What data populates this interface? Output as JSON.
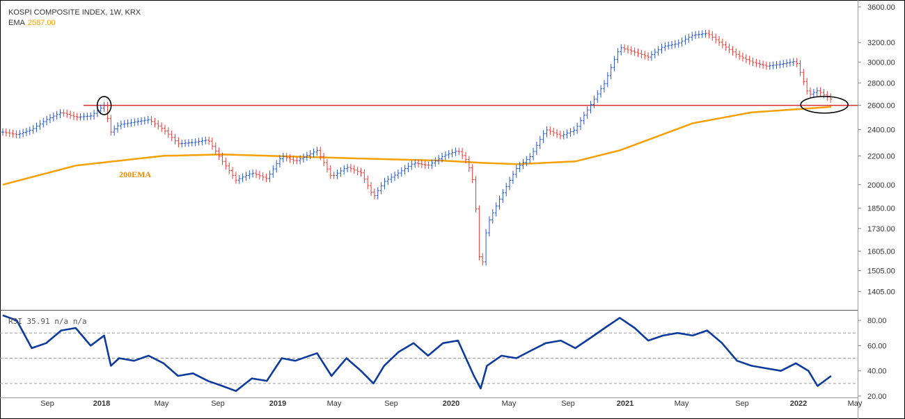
{
  "header": {
    "title": "KOSPI COMPOSITE INDEX, 1W, KRX",
    "ema_label": "EMA",
    "ema_value": "2587.00"
  },
  "colors": {
    "up": "#2557c7",
    "down": "#e23b36",
    "ema": "#f5a000",
    "support_line": "#d62d2d",
    "rsi_line": "#0d3a9b",
    "annotation": "#000000"
  },
  "chart_data": [
    {
      "type": "line",
      "title": "KOSPI COMPOSITE INDEX, 1W, KRX",
      "y_scale": "log",
      "ylim": [
        1340,
        3650
      ],
      "y_ticks": [
        "3600.00",
        "3200.00",
        "3000.00",
        "2800.00",
        "2600.00",
        "2400.00",
        "2200.00",
        "2000.00",
        "1850.00",
        "1730.00",
        "1605.00",
        "1505.00",
        "1405.00"
      ],
      "x_ticks": [
        "Sep",
        "2018",
        "May",
        "Sep",
        "2019",
        "May",
        "Sep",
        "2020",
        "May",
        "Sep",
        "2021",
        "May",
        "Sep",
        "2022",
        "May"
      ],
      "x_range": [
        "2017-07-03",
        "2022-05-09"
      ],
      "support_level": 2600,
      "annotations": [
        {
          "text": "200EMA",
          "date": "2018-03-01",
          "value": 2050
        }
      ],
      "circled_points": [
        {
          "date": "2018-01-29",
          "value": 2598
        },
        {
          "date": "2022-03-01",
          "value": 2605
        }
      ],
      "series": [
        {
          "name": "KOSPI",
          "dates": [
            "2017-07-03",
            "2017-08-01",
            "2017-09-01",
            "2017-10-01",
            "2017-11-01",
            "2017-12-01",
            "2018-01-01",
            "2018-01-29",
            "2018-02-12",
            "2018-03-01",
            "2018-04-01",
            "2018-05-01",
            "2018-06-01",
            "2018-07-01",
            "2018-08-01",
            "2018-09-01",
            "2018-10-01",
            "2018-10-29",
            "2018-12-01",
            "2019-01-01",
            "2019-02-01",
            "2019-03-01",
            "2019-04-15",
            "2019-05-15",
            "2019-06-15",
            "2019-07-15",
            "2019-08-10",
            "2019-09-01",
            "2019-10-01",
            "2019-11-01",
            "2019-12-01",
            "2020-01-01",
            "2020-02-01",
            "2020-02-20",
            "2020-03-05",
            "2020-03-19",
            "2020-04-01",
            "2020-05-01",
            "2020-06-01",
            "2020-07-01",
            "2020-08-01",
            "2020-09-01",
            "2020-10-01",
            "2020-11-01",
            "2020-12-01",
            "2021-01-01",
            "2021-02-01",
            "2021-03-01",
            "2021-04-01",
            "2021-05-01",
            "2021-06-01",
            "2021-07-01",
            "2021-08-01",
            "2021-09-01",
            "2021-10-01",
            "2021-11-01",
            "2021-12-01",
            "2022-01-01",
            "2022-01-27",
            "2022-02-15",
            "2022-03-15"
          ],
          "values": [
            2380,
            2360,
            2400,
            2480,
            2540,
            2500,
            2510,
            2598,
            2380,
            2440,
            2460,
            2480,
            2400,
            2290,
            2300,
            2320,
            2160,
            2030,
            2080,
            2040,
            2200,
            2160,
            2240,
            2050,
            2120,
            2080,
            1920,
            2020,
            2080,
            2150,
            2130,
            2200,
            2240,
            2160,
            2000,
            1460,
            1750,
            1930,
            2110,
            2200,
            2400,
            2350,
            2400,
            2600,
            2800,
            3150,
            3100,
            3050,
            3160,
            3190,
            3280,
            3300,
            3180,
            3070,
            3000,
            2960,
            2980,
            3010,
            2690,
            2730,
            2650
          ]
        },
        {
          "name": "200EMA",
          "dates": [
            "2017-07-03",
            "2017-12-01",
            "2018-06-01",
            "2018-10-01",
            "2019-06-01",
            "2020-01-01",
            "2020-03-19",
            "2020-06-01",
            "2020-10-01",
            "2021-01-01",
            "2021-06-01",
            "2021-10-01",
            "2022-03-15"
          ],
          "values": [
            2000,
            2130,
            2200,
            2210,
            2185,
            2165,
            2150,
            2140,
            2160,
            2240,
            2450,
            2540,
            2587
          ]
        }
      ]
    },
    {
      "type": "line",
      "title": "RSI 35.91 n/a n/a",
      "ylim": [
        20,
        85
      ],
      "y_ticks": [
        "80.00",
        "60.00",
        "40.00",
        "20.00"
      ],
      "reference_lines": [
        70,
        50,
        30
      ],
      "series": [
        {
          "name": "RSI",
          "dates": [
            "2017-07-03",
            "2017-08-01",
            "2017-09-01",
            "2017-10-01",
            "2017-11-01",
            "2017-12-01",
            "2018-01-01",
            "2018-01-29",
            "2018-02-12",
            "2018-03-01",
            "2018-04-01",
            "2018-05-01",
            "2018-06-01",
            "2018-07-01",
            "2018-08-01",
            "2018-09-01",
            "2018-10-01",
            "2018-10-29",
            "2018-12-01",
            "2019-01-01",
            "2019-02-01",
            "2019-03-01",
            "2019-04-15",
            "2019-05-15",
            "2019-06-15",
            "2019-07-15",
            "2019-08-10",
            "2019-09-01",
            "2019-10-01",
            "2019-11-01",
            "2019-12-01",
            "2020-01-01",
            "2020-02-01",
            "2020-02-20",
            "2020-03-05",
            "2020-03-19",
            "2020-04-01",
            "2020-05-01",
            "2020-06-01",
            "2020-07-01",
            "2020-08-01",
            "2020-09-01",
            "2020-10-01",
            "2020-11-01",
            "2020-12-01",
            "2021-01-01",
            "2021-02-01",
            "2021-03-01",
            "2021-04-01",
            "2021-05-01",
            "2021-06-01",
            "2021-07-01",
            "2021-08-01",
            "2021-09-01",
            "2021-10-01",
            "2021-11-01",
            "2021-12-01",
            "2022-01-01",
            "2022-01-27",
            "2022-02-15",
            "2022-03-15"
          ],
          "values": [
            84,
            80,
            58,
            62,
            72,
            74,
            60,
            68,
            44,
            50,
            48,
            52,
            46,
            36,
            38,
            32,
            28,
            24,
            34,
            32,
            50,
            48,
            54,
            36,
            50,
            40,
            30,
            44,
            55,
            62,
            52,
            62,
            64,
            48,
            36,
            26,
            44,
            52,
            50,
            56,
            62,
            64,
            58,
            66,
            74,
            82,
            74,
            64,
            68,
            70,
            68,
            72,
            62,
            48,
            44,
            42,
            40,
            46,
            40,
            28,
            36
          ]
        }
      ]
    }
  ]
}
